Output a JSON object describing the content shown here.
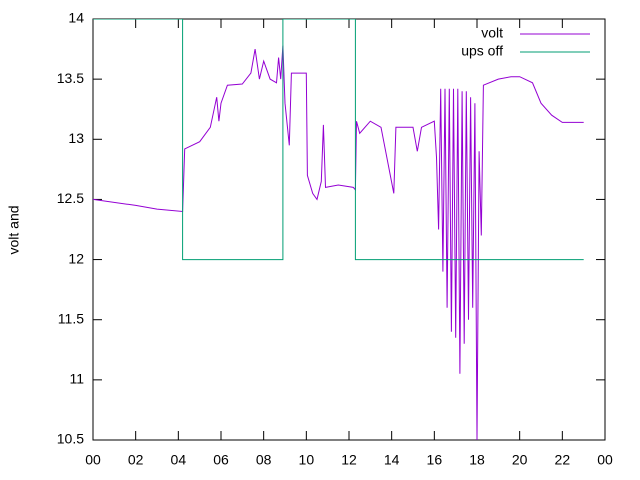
{
  "chart_data": {
    "type": "line",
    "ylabel": "volt and",
    "xlim": [
      0,
      24
    ],
    "xticks": [
      {
        "value": 0,
        "label": "00"
      },
      {
        "value": 2,
        "label": "02"
      },
      {
        "value": 4,
        "label": "04"
      },
      {
        "value": 6,
        "label": "06"
      },
      {
        "value": 8,
        "label": "08"
      },
      10,
      12,
      14,
      16,
      18,
      20,
      22,
      {
        "value": 24,
        "label": "00"
      }
    ],
    "ylim": [
      10.5,
      14
    ],
    "yticks": [
      10.5,
      11,
      11.5,
      12,
      12.5,
      13,
      13.5,
      14
    ],
    "legend": "top-right",
    "series": [
      {
        "name": "volt",
        "color": "#9400d3",
        "x": [
          0,
          2,
          3,
          4.2,
          4.25,
          4.3,
          5,
          5.5,
          5.8,
          5.9,
          6.0,
          6.3,
          7.0,
          7.4,
          7.6,
          7.8,
          8,
          8.3,
          8.6,
          8.7,
          8.8,
          8.9,
          9.0,
          9.2,
          9.3,
          10.0,
          10.05,
          10.3,
          10.5,
          10.7,
          10.8,
          10.9,
          11.5,
          12.2,
          12.3,
          12.35,
          12.5,
          13,
          13.5,
          14.1,
          14.2,
          15,
          15.2,
          15.4,
          16,
          16.1,
          16.2,
          16.3,
          16.4,
          16.5,
          16.6,
          16.7,
          16.8,
          16.9,
          17.0,
          17.1,
          17.2,
          17.3,
          17.4,
          17.5,
          17.6,
          17.7,
          17.8,
          17.9,
          18.0,
          18.1,
          18.2,
          18.3,
          19,
          19.6,
          20,
          20.6,
          21,
          21.5,
          22,
          23
        ],
        "values": [
          12.5,
          12.45,
          12.42,
          12.4,
          12.67,
          12.92,
          12.98,
          13.1,
          13.35,
          13.15,
          13.3,
          13.45,
          13.46,
          13.55,
          13.75,
          13.5,
          13.65,
          13.5,
          13.47,
          13.68,
          13.5,
          13.78,
          13.3,
          12.95,
          13.55,
          13.55,
          12.7,
          12.55,
          12.5,
          12.65,
          13.12,
          12.6,
          12.62,
          12.6,
          12.58,
          13.15,
          13.05,
          13.15,
          13.1,
          12.55,
          13.1,
          13.1,
          12.9,
          13.1,
          13.15,
          12.85,
          12.25,
          13.42,
          11.9,
          13.42,
          11.6,
          13.42,
          11.4,
          13.42,
          11.35,
          13.42,
          11.05,
          13.4,
          11.3,
          13.4,
          11.5,
          13.35,
          11.6,
          13.3,
          10.5,
          12.9,
          12.2,
          13.45,
          13.5,
          13.52,
          13.52,
          13.47,
          13.3,
          13.2,
          13.14,
          13.14
        ]
      },
      {
        "name": "ups off",
        "color": "#009e73",
        "x": [
          0,
          4.2,
          4.2,
          8.9,
          8.9,
          12.3,
          12.3,
          23
        ],
        "values": [
          14,
          14,
          12,
          12,
          14,
          14,
          12,
          12
        ]
      }
    ]
  }
}
